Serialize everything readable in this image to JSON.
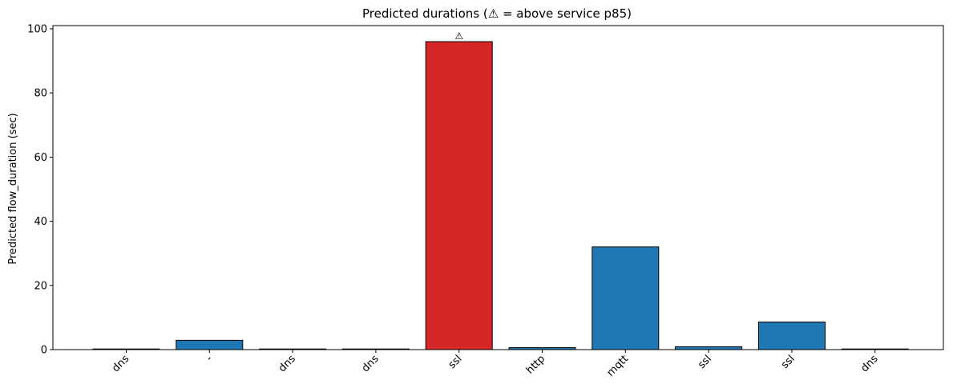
{
  "chart_data": {
    "type": "bar",
    "title": "Predicted durations (⚠ = above service p85)",
    "xlabel": "",
    "ylabel": "Predicted flow_duration (sec)",
    "ylim": [
      0,
      101
    ],
    "yticks": [
      0,
      20,
      40,
      60,
      80,
      100
    ],
    "categories": [
      "dns",
      "-",
      "dns",
      "dns",
      "ssl",
      "http",
      "mqtt",
      "ssl",
      "ssl",
      "dns"
    ],
    "values": [
      0.05,
      2.9,
      0.05,
      0.05,
      96.0,
      0.6,
      32.0,
      0.9,
      8.6,
      0.05
    ],
    "flagged": [
      false,
      false,
      false,
      false,
      true,
      false,
      false,
      false,
      false,
      false
    ],
    "flag_symbol": "⚠",
    "colors": {
      "normal": "#1f77b4",
      "flagged": "#d62728",
      "edge": "#000000"
    },
    "grid": false,
    "x_tick_rotation": 45
  }
}
